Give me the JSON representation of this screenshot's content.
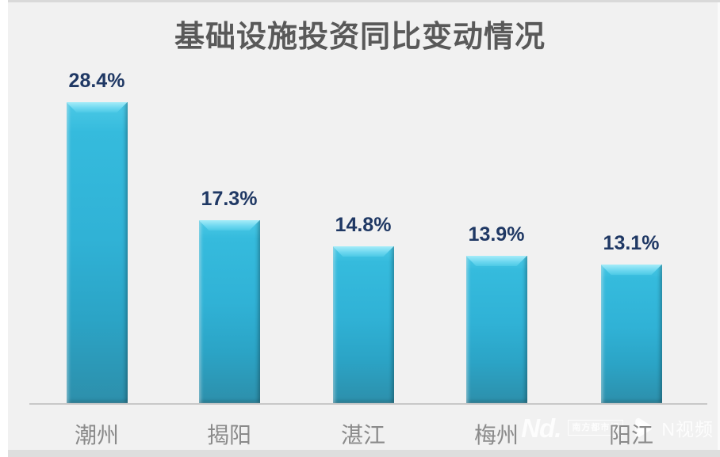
{
  "title": "基础设施投资同比变动情况",
  "chart_data": {
    "type": "bar",
    "title": "基础设施投资同比变动情况",
    "categories": [
      "潮州",
      "揭阳",
      "湛江",
      "梅州",
      "阳江"
    ],
    "values": [
      28.4,
      17.3,
      14.8,
      13.9,
      13.1
    ],
    "value_labels": [
      "28.4%",
      "17.3%",
      "14.8%",
      "13.9%",
      "13.1%"
    ],
    "xlabel": "",
    "ylabel": "",
    "ylim": [
      0,
      30
    ],
    "unit": "%",
    "grid": false,
    "legend": false,
    "bar_color": "#30b2d6",
    "bar_highlight_color": "#a6ecf9",
    "bar_shadow_color": "#2d8fab",
    "value_label_color": "#1f3864",
    "category_label_color": "#8a8a8a",
    "title_color": "#595959",
    "axis_color": "#c8c8c8",
    "background_color": "#f1f1f1"
  },
  "watermark": {
    "logo_text": "Nd.",
    "paper_name": "南方都市报",
    "video_brand": "N视频"
  }
}
